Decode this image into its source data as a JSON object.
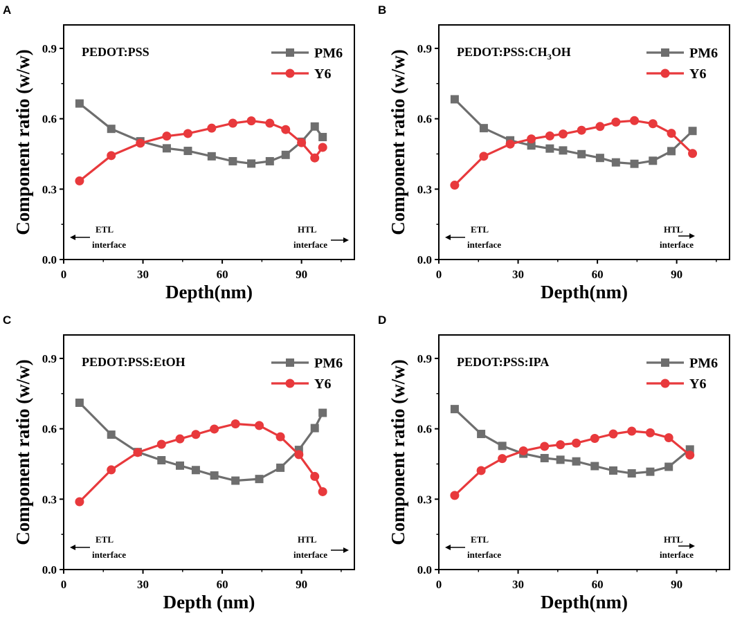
{
  "colors": {
    "pm6": "#6e6e6e",
    "y6": "#e8393c",
    "axis": "#000000"
  },
  "annotations": {
    "etl": "ETL",
    "htl": "HTL",
    "interface": "interface"
  },
  "chart_data": [
    {
      "panel": "A",
      "type": "line",
      "title": "PEDOT:PSS",
      "title_sub": "",
      "title_tail": "",
      "xlabel": "Depth(nm)",
      "ylabel": "Component ratio (w/w)",
      "xlim": [
        0,
        110
      ],
      "ylim": [
        0,
        1.0
      ],
      "xticks": [
        "0",
        "30",
        "60",
        "90"
      ],
      "yticks": [
        "0.0",
        "0.3",
        "0.6",
        "0.9"
      ],
      "series": [
        {
          "name": "PM6",
          "marker": "square",
          "x": [
            6,
            18,
            29,
            39,
            47,
            56,
            64,
            71,
            78,
            84,
            90,
            95,
            98
          ],
          "y": [
            0.665,
            0.557,
            0.504,
            0.474,
            0.463,
            0.44,
            0.419,
            0.409,
            0.419,
            0.446,
            0.502,
            0.567,
            0.522
          ]
        },
        {
          "name": "Y6",
          "marker": "circle",
          "x": [
            6,
            18,
            29,
            39,
            47,
            56,
            64,
            71,
            78,
            84,
            90,
            95,
            98
          ],
          "y": [
            0.335,
            0.443,
            0.496,
            0.526,
            0.537,
            0.56,
            0.581,
            0.591,
            0.581,
            0.554,
            0.498,
            0.433,
            0.478
          ]
        }
      ]
    },
    {
      "panel": "B",
      "type": "line",
      "title": "PEDOT:PSS:CH",
      "title_sub": "3",
      "title_tail": "OH",
      "xlabel": "Depth(nm)",
      "ylabel": "Component ratio (w/w)",
      "xlim": [
        0,
        110
      ],
      "ylim": [
        0,
        1.0
      ],
      "xticks": [
        "0",
        "30",
        "60",
        "90"
      ],
      "yticks": [
        "0.0",
        "0.3",
        "0.6",
        "0.9"
      ],
      "series": [
        {
          "name": "PM6",
          "marker": "square",
          "x": [
            6,
            17,
            27,
            35,
            42,
            47,
            54,
            61,
            67,
            74,
            81,
            88,
            96
          ],
          "y": [
            0.683,
            0.56,
            0.508,
            0.486,
            0.473,
            0.465,
            0.449,
            0.433,
            0.414,
            0.408,
            0.421,
            0.462,
            0.548
          ]
        },
        {
          "name": "Y6",
          "marker": "circle",
          "x": [
            6,
            17,
            27,
            35,
            42,
            47,
            54,
            61,
            67,
            74,
            81,
            88,
            96
          ],
          "y": [
            0.317,
            0.44,
            0.492,
            0.514,
            0.527,
            0.535,
            0.551,
            0.567,
            0.586,
            0.592,
            0.579,
            0.538,
            0.452
          ]
        }
      ]
    },
    {
      "panel": "C",
      "type": "line",
      "title": "PEDOT:PSS:EtOH",
      "title_sub": "",
      "title_tail": "",
      "xlabel": "Depth (nm)",
      "ylabel": "Component ratio (w/w)",
      "xlim": [
        0,
        110
      ],
      "ylim": [
        0,
        1.0
      ],
      "xticks": [
        "0",
        "30",
        "60",
        "90"
      ],
      "yticks": [
        "0.0",
        "0.3",
        "0.6",
        "0.9"
      ],
      "series": [
        {
          "name": "PM6",
          "marker": "square",
          "x": [
            6,
            18,
            28,
            37,
            44,
            50,
            57,
            65,
            74,
            82,
            89,
            95,
            98
          ],
          "y": [
            0.711,
            0.575,
            0.501,
            0.466,
            0.443,
            0.424,
            0.401,
            0.379,
            0.386,
            0.434,
            0.51,
            0.603,
            0.668
          ]
        },
        {
          "name": "Y6",
          "marker": "circle",
          "x": [
            6,
            18,
            28,
            37,
            44,
            50,
            57,
            65,
            74,
            82,
            89,
            95,
            98
          ],
          "y": [
            0.289,
            0.425,
            0.499,
            0.534,
            0.557,
            0.576,
            0.599,
            0.621,
            0.614,
            0.566,
            0.49,
            0.397,
            0.332
          ]
        }
      ]
    },
    {
      "panel": "D",
      "type": "line",
      "title": "PEDOT:PSS:IPA",
      "title_sub": "",
      "title_tail": "",
      "xlabel": "Depth(nm)",
      "ylabel": "Component ratio (w/w)",
      "xlim": [
        0,
        110
      ],
      "ylim": [
        0,
        1.0
      ],
      "xticks": [
        "0",
        "30",
        "60",
        "90"
      ],
      "yticks": [
        "0.0",
        "0.3",
        "0.6",
        "0.9"
      ],
      "series": [
        {
          "name": "PM6",
          "marker": "square",
          "x": [
            6,
            16,
            24,
            32,
            40,
            46,
            52,
            59,
            66,
            73,
            80,
            87,
            95
          ],
          "y": [
            0.684,
            0.578,
            0.527,
            0.494,
            0.475,
            0.468,
            0.461,
            0.441,
            0.422,
            0.41,
            0.417,
            0.438,
            0.512
          ]
        },
        {
          "name": "Y6",
          "marker": "circle",
          "x": [
            6,
            16,
            24,
            32,
            40,
            46,
            52,
            59,
            66,
            73,
            80,
            87,
            95
          ],
          "y": [
            0.316,
            0.422,
            0.473,
            0.506,
            0.525,
            0.532,
            0.539,
            0.559,
            0.578,
            0.59,
            0.583,
            0.562,
            0.488
          ]
        }
      ]
    }
  ]
}
